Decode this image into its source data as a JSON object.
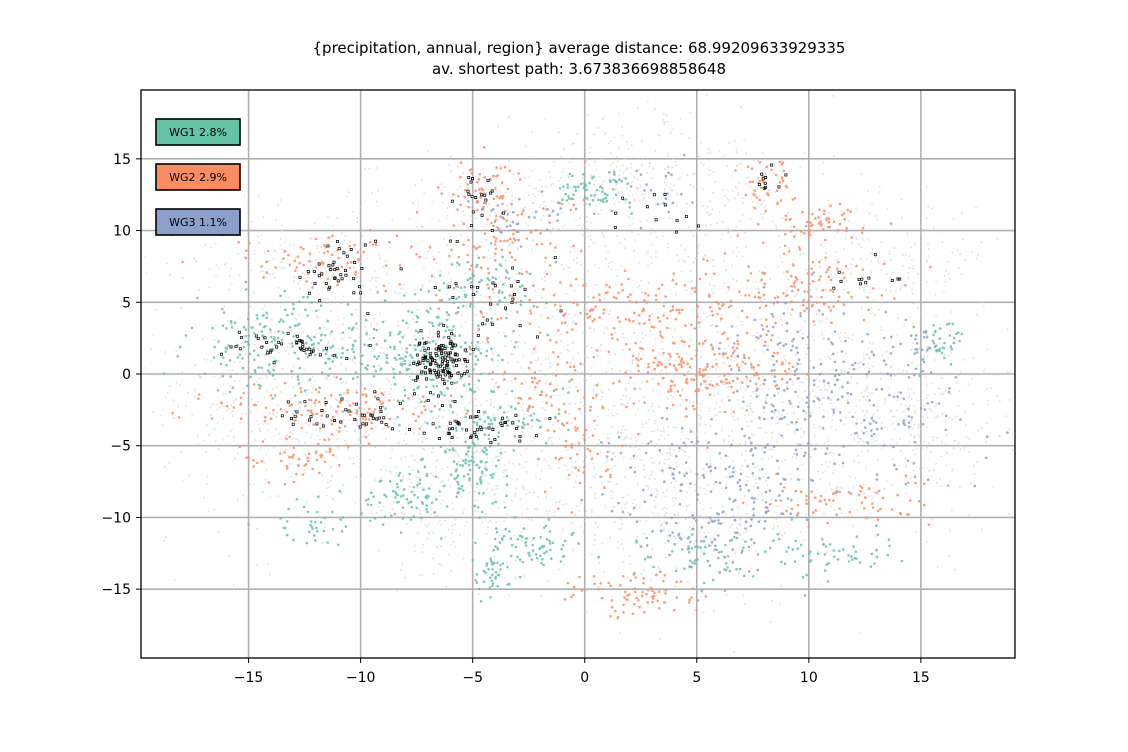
{
  "chart_data": {
    "type": "scatter",
    "title_line1": "{precipitation, annual, region} average distance: 68.99209633929335",
    "title_line2": "av. shortest path: 3.673836698858648",
    "xlabel": "",
    "ylabel": "",
    "xlim": [
      -19.8,
      19.2
    ],
    "ylim": [
      -19.8,
      19.8
    ],
    "xticks": [
      -15,
      -10,
      -5,
      0,
      5,
      10,
      15
    ],
    "yticks": [
      -15,
      -10,
      -5,
      0,
      5,
      10,
      15
    ],
    "xtick_labels": [
      "−15",
      "−10",
      "−5",
      "0",
      "5",
      "10",
      "15"
    ],
    "ytick_labels": [
      "−15",
      "−10",
      "−5",
      "0",
      "5",
      "10",
      "15"
    ],
    "grid": true,
    "legend_position": "top-left",
    "background_color": "#d3d3d3",
    "series": [
      {
        "name": "WG1 2.8%",
        "color": "#66c2a5",
        "clusters": [
          {
            "cx": -14.0,
            "cy": 2.0,
            "sx": 1.8,
            "sy": 1.6,
            "n": 170
          },
          {
            "cx": -6.5,
            "cy": 1.0,
            "sx": 1.4,
            "sy": 1.8,
            "n": 200
          },
          {
            "cx": -5.0,
            "cy": -6.0,
            "sx": 0.8,
            "sy": 1.6,
            "n": 110
          },
          {
            "cx": -8.0,
            "cy": -8.5,
            "sx": 1.0,
            "sy": 1.0,
            "n": 80
          },
          {
            "cx": -4.5,
            "cy": 6.0,
            "sx": 1.5,
            "sy": 1.2,
            "n": 90
          },
          {
            "cx": 0.3,
            "cy": 12.8,
            "sx": 0.9,
            "sy": 0.6,
            "n": 60
          },
          {
            "cx": -2.5,
            "cy": -12.0,
            "sx": 0.9,
            "sy": 0.8,
            "n": 70
          },
          {
            "cx": -4.2,
            "cy": -14.0,
            "sx": 0.4,
            "sy": 0.9,
            "n": 40
          },
          {
            "cx": 16.0,
            "cy": 2.2,
            "sx": 0.6,
            "sy": 1.0,
            "n": 35
          },
          {
            "cx": 11.0,
            "cy": -12.5,
            "sx": 1.5,
            "sy": 0.7,
            "n": 55
          },
          {
            "cx": -12.5,
            "cy": -10.5,
            "sx": 0.8,
            "sy": 0.8,
            "n": 35
          },
          {
            "cx": 5.0,
            "cy": -12.5,
            "sx": 1.5,
            "sy": 1.2,
            "n": 55
          },
          {
            "cx": -10.0,
            "cy": 1.5,
            "sx": 1.2,
            "sy": 1.5,
            "n": 60
          },
          {
            "cx": -3.0,
            "cy": -3.0,
            "sx": 1.2,
            "sy": 1.2,
            "n": 60
          }
        ]
      },
      {
        "name": "WG2 2.9%",
        "color": "#fc8d62",
        "clusters": [
          {
            "cx": -11.0,
            "cy": -2.5,
            "sx": 2.6,
            "sy": 1.0,
            "n": 130
          },
          {
            "cx": 2.0,
            "cy": 4.5,
            "sx": 3.5,
            "sy": 1.2,
            "n": 180
          },
          {
            "cx": 9.5,
            "cy": 6.5,
            "sx": 2.0,
            "sy": 1.3,
            "n": 110
          },
          {
            "cx": 10.5,
            "cy": 10.5,
            "sx": 1.2,
            "sy": 0.6,
            "n": 55
          },
          {
            "cx": 8.0,
            "cy": 13.5,
            "sx": 0.6,
            "sy": 1.0,
            "n": 40
          },
          {
            "cx": 4.0,
            "cy": 0.0,
            "sx": 1.5,
            "sy": 1.5,
            "n": 110
          },
          {
            "cx": -3.5,
            "cy": 9.5,
            "sx": 1.6,
            "sy": 1.5,
            "n": 90
          },
          {
            "cx": -11.5,
            "cy": 8.0,
            "sx": 2.2,
            "sy": 1.0,
            "n": 80
          },
          {
            "cx": 2.5,
            "cy": -15.5,
            "sx": 1.6,
            "sy": 0.8,
            "n": 75
          },
          {
            "cx": -13.0,
            "cy": -6.0,
            "sx": 1.2,
            "sy": 0.8,
            "n": 50
          },
          {
            "cx": 11.5,
            "cy": -9.0,
            "sx": 2.0,
            "sy": 0.8,
            "n": 70
          },
          {
            "cx": 7.5,
            "cy": 0.5,
            "sx": 1.5,
            "sy": 1.2,
            "n": 80
          },
          {
            "cx": 0.0,
            "cy": -5.5,
            "sx": 0.8,
            "sy": 1.5,
            "n": 45
          },
          {
            "cx": -4.5,
            "cy": 13.0,
            "sx": 1.0,
            "sy": 1.0,
            "n": 50
          },
          {
            "cx": -1.5,
            "cy": -1.0,
            "sx": 1.5,
            "sy": 1.5,
            "n": 60
          }
        ]
      },
      {
        "name": "WG3 1.1%",
        "color": "#8da0cb",
        "clusters": [
          {
            "cx": 11.5,
            "cy": -2.0,
            "sx": 3.0,
            "sy": 2.4,
            "n": 190
          },
          {
            "cx": 6.5,
            "cy": -7.0,
            "sx": 2.5,
            "sy": 2.0,
            "n": 160
          },
          {
            "cx": 5.5,
            "cy": -12.0,
            "sx": 1.6,
            "sy": 1.2,
            "n": 70
          },
          {
            "cx": -2.5,
            "cy": 11.0,
            "sx": 1.4,
            "sy": 0.8,
            "n": 40
          },
          {
            "cx": 2.5,
            "cy": 12.5,
            "sx": 1.2,
            "sy": 1.0,
            "n": 30
          },
          {
            "cx": 15.0,
            "cy": 2.0,
            "sx": 0.8,
            "sy": 0.6,
            "n": 25
          },
          {
            "cx": 9.0,
            "cy": 2.5,
            "sx": 1.5,
            "sy": 1.2,
            "n": 40
          }
        ]
      }
    ],
    "highlighted_points": {
      "color": "#000000",
      "clusters": [
        {
          "cx": -6.5,
          "cy": 1.0,
          "sx": 0.6,
          "sy": 0.9,
          "n": 120
        },
        {
          "cx": -11.0,
          "cy": 7.0,
          "sx": 0.8,
          "sy": 1.2,
          "n": 40
        },
        {
          "cx": -13.5,
          "cy": 2.0,
          "sx": 1.2,
          "sy": 0.5,
          "n": 40
        },
        {
          "cx": -10.5,
          "cy": -2.5,
          "sx": 1.5,
          "sy": 0.6,
          "n": 40
        },
        {
          "cx": -5.0,
          "cy": -3.5,
          "sx": 1.2,
          "sy": 0.8,
          "n": 45
        },
        {
          "cx": -4.8,
          "cy": 12.5,
          "sx": 0.6,
          "sy": 1.2,
          "n": 20
        },
        {
          "cx": 8.2,
          "cy": 13.5,
          "sx": 0.4,
          "sy": 0.6,
          "n": 10
        },
        {
          "cx": -4.0,
          "cy": 6.0,
          "sx": 1.5,
          "sy": 1.5,
          "n": 30
        },
        {
          "cx": 3.0,
          "cy": 11.0,
          "sx": 1.0,
          "sy": 0.8,
          "n": 12
        },
        {
          "cx": 12.0,
          "cy": 6.5,
          "sx": 1.0,
          "sy": 0.6,
          "n": 12
        }
      ]
    }
  }
}
